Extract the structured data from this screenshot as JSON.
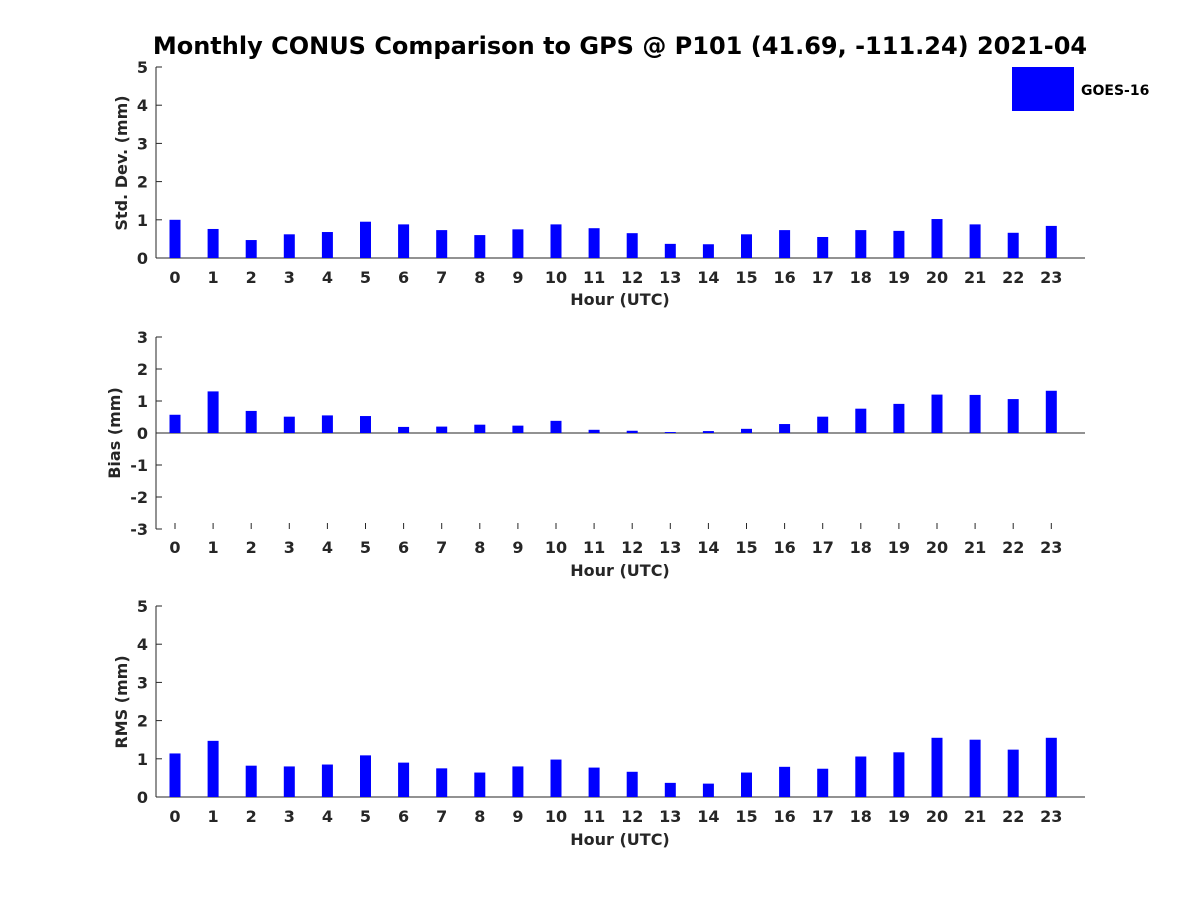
{
  "title": "Monthly CONUS Comparison to GPS @ P101 (41.69, -111.24) 2021-04",
  "legend": {
    "label": "GOES-16",
    "color": "#0000ff",
    "placement": "top-right"
  },
  "chart_data": [
    {
      "type": "bar",
      "xlabel": "Hour (UTC)",
      "ylabel": "Std. Dev. (mm)",
      "ylim": [
        0,
        5
      ],
      "yticks": [
        0,
        1,
        2,
        3,
        4,
        5
      ],
      "categories": [
        0,
        1,
        2,
        3,
        4,
        5,
        6,
        7,
        8,
        9,
        10,
        11,
        12,
        13,
        14,
        15,
        16,
        17,
        18,
        19,
        20,
        21,
        22,
        23
      ],
      "series": [
        {
          "name": "GOES-16",
          "color": "#0000ff",
          "values": [
            1.0,
            0.76,
            0.47,
            0.62,
            0.68,
            0.95,
            0.88,
            0.73,
            0.6,
            0.75,
            0.88,
            0.78,
            0.65,
            0.37,
            0.36,
            0.62,
            0.73,
            0.55,
            0.73,
            0.71,
            1.02,
            0.88,
            0.66,
            0.84
          ]
        }
      ]
    },
    {
      "type": "bar",
      "xlabel": "Hour (UTC)",
      "ylabel": "Bias (mm)",
      "ylim": [
        -3,
        3
      ],
      "yticks": [
        -3,
        -2,
        -1,
        0,
        1,
        2,
        3
      ],
      "categories": [
        0,
        1,
        2,
        3,
        4,
        5,
        6,
        7,
        8,
        9,
        10,
        11,
        12,
        13,
        14,
        15,
        16,
        17,
        18,
        19,
        20,
        21,
        22,
        23
      ],
      "series": [
        {
          "name": "GOES-16",
          "color": "#0000ff",
          "values": [
            0.57,
            1.3,
            0.69,
            0.51,
            0.55,
            0.53,
            0.19,
            0.2,
            0.26,
            0.23,
            0.38,
            0.1,
            0.07,
            0.03,
            0.06,
            0.13,
            0.28,
            0.51,
            0.76,
            0.91,
            1.2,
            1.19,
            1.06,
            1.32
          ]
        }
      ]
    },
    {
      "type": "bar",
      "xlabel": "Hour (UTC)",
      "ylabel": "RMS (mm)",
      "ylim": [
        0,
        5
      ],
      "yticks": [
        0,
        1,
        2,
        3,
        4,
        5
      ],
      "categories": [
        0,
        1,
        2,
        3,
        4,
        5,
        6,
        7,
        8,
        9,
        10,
        11,
        12,
        13,
        14,
        15,
        16,
        17,
        18,
        19,
        20,
        21,
        22,
        23
      ],
      "series": [
        {
          "name": "GOES-16",
          "color": "#0000ff",
          "values": [
            1.14,
            1.47,
            0.82,
            0.8,
            0.85,
            1.09,
            0.9,
            0.75,
            0.64,
            0.8,
            0.98,
            0.77,
            0.66,
            0.37,
            0.35,
            0.64,
            0.79,
            0.74,
            1.06,
            1.17,
            1.55,
            1.5,
            1.24,
            1.55
          ]
        }
      ]
    }
  ]
}
